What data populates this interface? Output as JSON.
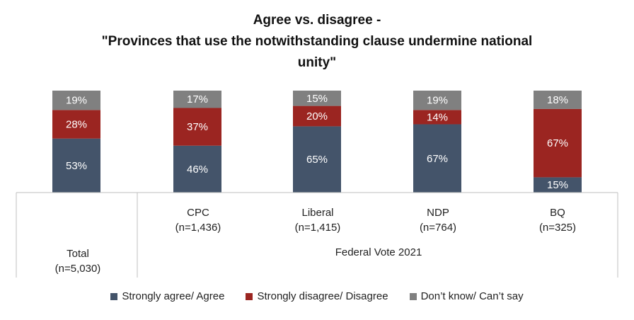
{
  "chart_data": {
    "type": "bar",
    "stacked": true,
    "title_lines": [
      "Agree vs. disagree -",
      "\"Provinces that use the notwithstanding clause undermine national",
      "unity\""
    ],
    "categories": [
      {
        "name": "Total",
        "n": "(n=5,030)"
      },
      {
        "name": "CPC",
        "n": "(n=1,436)"
      },
      {
        "name": "Liberal",
        "n": "(n=1,415)"
      },
      {
        "name": "NDP",
        "n": "(n=764)"
      },
      {
        "name": "BQ",
        "n": "(n=325)"
      }
    ],
    "group_label": "Federal Vote 2021",
    "series": [
      {
        "name": "Strongly agree/ Agree",
        "color": "#44546a",
        "values": [
          53,
          46,
          65,
          67,
          15
        ]
      },
      {
        "name": "Strongly disagree/ Disagree",
        "color": "#9b2521",
        "values": [
          28,
          37,
          20,
          14,
          67
        ]
      },
      {
        "name": "Don’t know/ Can’t say",
        "color": "#808080",
        "values": [
          19,
          17,
          15,
          19,
          18
        ]
      }
    ],
    "value_suffix": "%",
    "ylim": [
      0,
      100
    ],
    "legend_position": "bottom"
  }
}
